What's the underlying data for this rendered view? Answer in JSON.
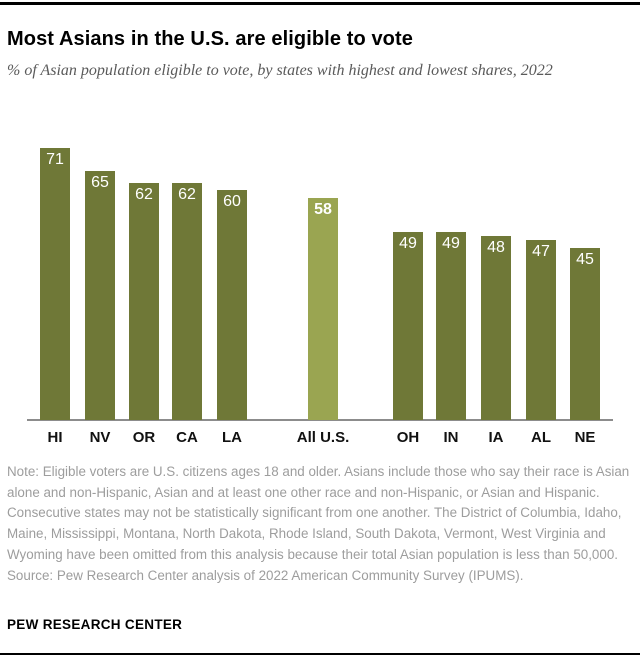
{
  "chart_data": {
    "type": "bar",
    "title": "Most Asians in the U.S. are eligible to vote",
    "subtitle": "% of Asian population eligible to vote, by states with highest and lowest shares, 2022",
    "categories": [
      "HI",
      "NV",
      "OR",
      "CA",
      "LA",
      "All U.S.",
      "OH",
      "IN",
      "IA",
      "AL",
      "NE"
    ],
    "values": [
      71,
      65,
      62,
      62,
      60,
      58,
      49,
      49,
      48,
      47,
      45
    ],
    "highlight_category": "All U.S.",
    "highlight_index": 5,
    "groups": [
      [
        "HI",
        "NV",
        "OR",
        "CA",
        "LA"
      ],
      [
        "All U.S."
      ],
      [
        "OH",
        "IN",
        "IA",
        "AL",
        "NE"
      ]
    ],
    "bar_color": "#6F7837",
    "highlight_bar_color": "#9AA551",
    "value_label_color": "#FFFFFF",
    "axis_line_color": "#8C8C8C",
    "value_labels_position": "inside-top",
    "xlabel": "",
    "ylabel": "",
    "ylim": [
      0,
      75
    ],
    "grid": false,
    "legend": "none"
  },
  "footer": {
    "note": "Note: Eligible voters are U.S. citizens ages 18 and older. Asians include those who say their race is Asian alone and non-Hispanic, Asian and at least one other race and non-Hispanic, or Asian and Hispanic. Consecutive states may not be statistically significant from one another. The District of Columbia, Idaho, Maine, Mississippi, Montana, North Dakota, Rhode Island, South Dakota, Vermont, West Virginia and Wyoming have been omitted from this analysis because their total Asian population is less than 50,000.",
    "source": "Source: Pew Research Center analysis of 2022 American Community Survey (IPUMS).",
    "brand": "PEW RESEARCH CENTER"
  }
}
